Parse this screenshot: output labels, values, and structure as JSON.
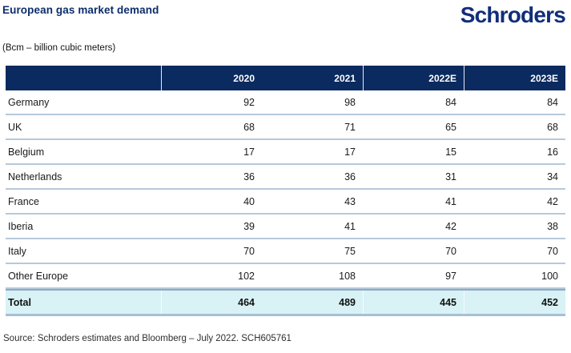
{
  "header": {
    "title": "European gas market demand",
    "logo_text": "Schroders",
    "subtitle": "(Bcm – billion cubic meters)"
  },
  "table": {
    "columns": [
      "",
      "2020",
      "2021",
      "2022E",
      "2023E"
    ],
    "rows": [
      {
        "label": "Germany",
        "values": [
          "92",
          "98",
          "84",
          "84"
        ]
      },
      {
        "label": "UK",
        "values": [
          "68",
          "71",
          "65",
          "68"
        ]
      },
      {
        "label": "Belgium",
        "values": [
          "17",
          "17",
          "15",
          "16"
        ]
      },
      {
        "label": "Netherlands",
        "values": [
          "36",
          "36",
          "31",
          "34"
        ]
      },
      {
        "label": "France",
        "values": [
          "40",
          "43",
          "41",
          "42"
        ]
      },
      {
        "label": "Iberia",
        "values": [
          "39",
          "41",
          "42",
          "38"
        ]
      },
      {
        "label": "Italy",
        "values": [
          "70",
          "75",
          "70",
          "70"
        ]
      },
      {
        "label": "Other Europe",
        "values": [
          "102",
          "108",
          "97",
          "100"
        ]
      }
    ],
    "total_row": {
      "label": "Total",
      "values": [
        "464",
        "489",
        "445",
        "452"
      ]
    }
  },
  "footer": {
    "source": "Source: Schroders estimates and Bloomberg – July 2022. SCH605761"
  },
  "colors": {
    "header_bg": "#0b2a5f",
    "title_navy": "#0c2d6a",
    "logo_navy": "#122e7a",
    "total_bg": "#d8f2f5",
    "row_divider": "#b6c9db"
  },
  "chart_data": {
    "type": "table",
    "title": "European gas market demand",
    "subtitle": "(Bcm – billion cubic meters)",
    "categories": [
      "2020",
      "2021",
      "2022E",
      "2023E"
    ],
    "series": [
      {
        "name": "Germany",
        "values": [
          92,
          98,
          84,
          84
        ]
      },
      {
        "name": "UK",
        "values": [
          68,
          71,
          65,
          68
        ]
      },
      {
        "name": "Belgium",
        "values": [
          17,
          17,
          15,
          16
        ]
      },
      {
        "name": "Netherlands",
        "values": [
          36,
          36,
          31,
          34
        ]
      },
      {
        "name": "France",
        "values": [
          40,
          43,
          41,
          42
        ]
      },
      {
        "name": "Iberia",
        "values": [
          39,
          41,
          42,
          38
        ]
      },
      {
        "name": "Italy",
        "values": [
          70,
          75,
          70,
          70
        ]
      },
      {
        "name": "Other Europe",
        "values": [
          102,
          108,
          97,
          100
        ]
      },
      {
        "name": "Total",
        "values": [
          464,
          489,
          445,
          452
        ]
      }
    ],
    "source": "Source: Schroders estimates and Bloomberg – July 2022. SCH605761"
  }
}
